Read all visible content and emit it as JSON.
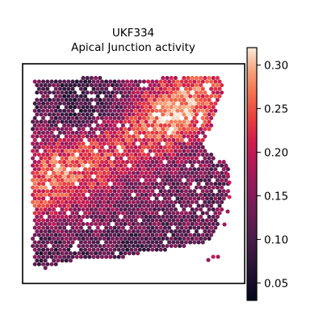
{
  "chart_data": {
    "type": "heatmap",
    "title_lines": [
      "UKF334",
      "Apical Junction activity"
    ],
    "xlabel": "",
    "ylabel": "",
    "grid": false,
    "colormap": "rocket",
    "colorbar": {
      "min": 0.03,
      "max": 0.32,
      "ticks": [
        0.05,
        0.1,
        0.15,
        0.2,
        0.25,
        0.3
      ],
      "tick_labels": [
        "0.05",
        "0.10",
        "0.15",
        "0.20",
        "0.25",
        "0.30"
      ]
    },
    "colors": {
      "frame": "#000000",
      "background": "#ffffff"
    }
  }
}
